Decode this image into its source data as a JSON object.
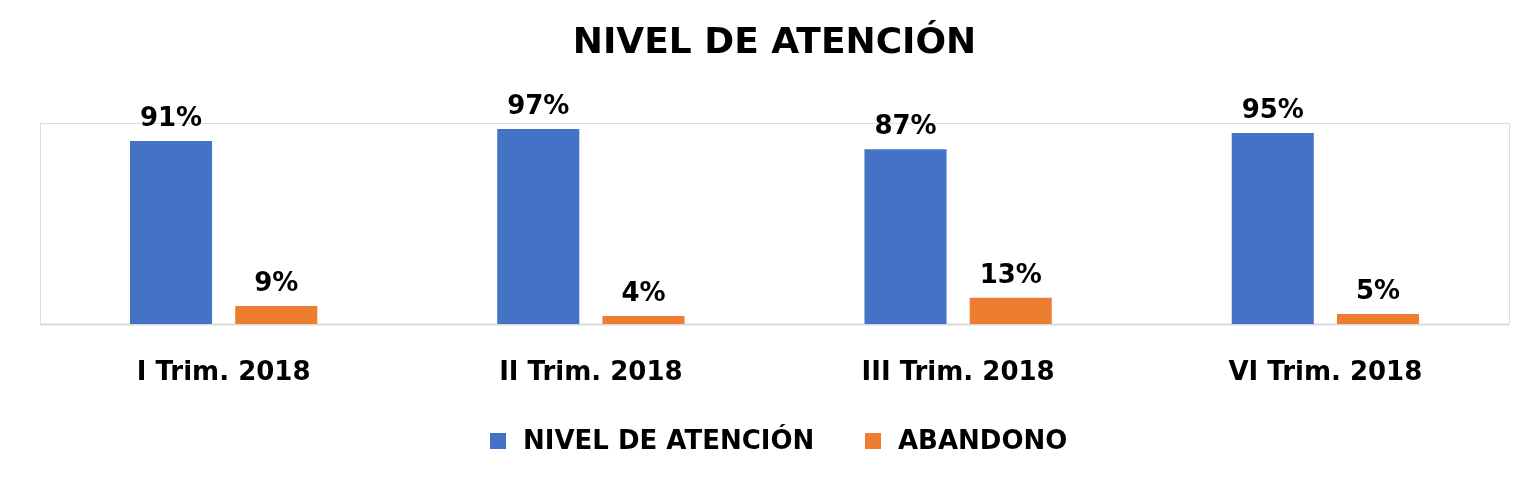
{
  "chart_data": {
    "type": "bar",
    "title": "NIVEL DE ATENCIÓN",
    "categories": [
      "I Trim. 2018",
      "II Trim. 2018",
      "III Trim. 2018",
      "VI Trim. 2018"
    ],
    "series": [
      {
        "name": "NIVEL DE ATENCIÓN",
        "color": "#4472c4",
        "values": [
          91,
          97,
          87,
          95
        ],
        "value_labels": [
          "91%",
          "97%",
          "87%",
          "95%"
        ]
      },
      {
        "name": "ABANDONO",
        "color": "#ed7d31",
        "values": [
          9,
          4,
          13,
          5
        ],
        "value_labels": [
          "9%",
          "4%",
          "13%",
          "5%"
        ]
      }
    ],
    "legend": "bottom",
    "tick_labels": "x"
  }
}
